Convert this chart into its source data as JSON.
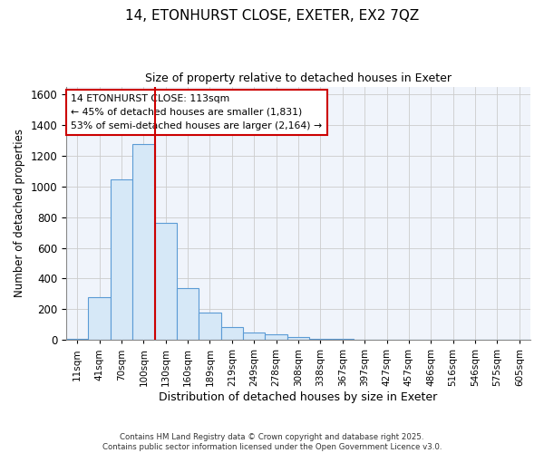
{
  "title_line1": "14, ETONHURST CLOSE, EXETER, EX2 7QZ",
  "title_line2": "Size of property relative to detached houses in Exeter",
  "xlabel": "Distribution of detached houses by size in Exeter",
  "ylabel": "Number of detached properties",
  "footer_line1": "Contains HM Land Registry data © Crown copyright and database right 2025.",
  "footer_line2": "Contains public sector information licensed under the Open Government Licence v3.0.",
  "categories": [
    "11sqm",
    "41sqm",
    "70sqm",
    "100sqm",
    "130sqm",
    "160sqm",
    "189sqm",
    "219sqm",
    "249sqm",
    "278sqm",
    "308sqm",
    "338sqm",
    "367sqm",
    "397sqm",
    "427sqm",
    "457sqm",
    "486sqm",
    "516sqm",
    "546sqm",
    "575sqm",
    "605sqm"
  ],
  "values": [
    10,
    280,
    1045,
    1275,
    760,
    340,
    180,
    85,
    50,
    35,
    20,
    10,
    5,
    2,
    1,
    1,
    0,
    0,
    0,
    0,
    0
  ],
  "bar_color": "#d6e8f7",
  "bar_edge_color": "#5b9bd5",
  "ylim": [
    0,
    1650
  ],
  "yticks": [
    0,
    200,
    400,
    600,
    800,
    1000,
    1200,
    1400,
    1600
  ],
  "property_line_x": 3.5,
  "property_line_color": "#cc0000",
  "annotation_text": "14 ETONHURST CLOSE: 113sqm\n← 45% of detached houses are smaller (1,831)\n53% of semi-detached houses are larger (2,164) →",
  "annotation_box_color": "#ffffff",
  "annotation_box_edge_color": "#cc0000",
  "grid_color": "#cccccc",
  "background_color": "#ffffff",
  "ax_background_color": "#f0f4fb"
}
